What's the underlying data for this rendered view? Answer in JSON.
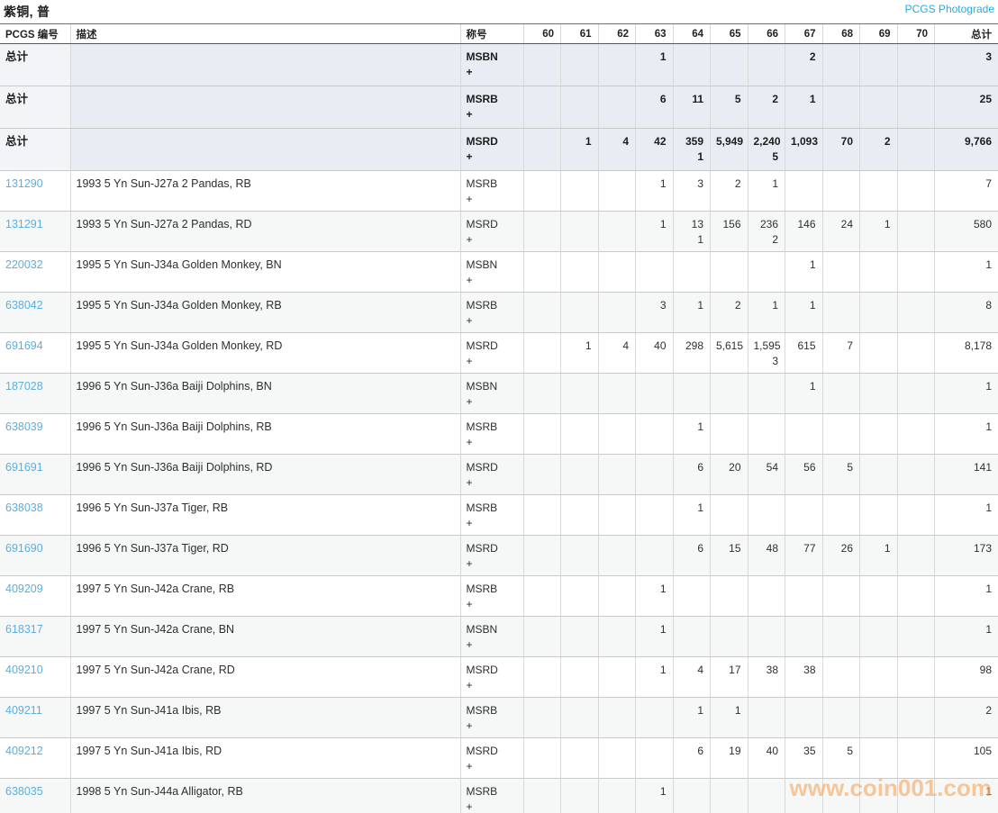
{
  "page": {
    "title": "紫铜, 普",
    "photograde_link": "PCGS Photograde"
  },
  "colors": {
    "link_accent": "#2ba9e2",
    "row_link": "#5eaedd",
    "summary_row_bg": "#e7edf2",
    "stripe_row_bg": "#f6f7f7",
    "watermark_orange": "#f7a75f"
  },
  "table": {
    "headers": {
      "pcgs": "PCGS 编号",
      "desc": "描述",
      "designation": "称号",
      "grades": [
        "60",
        "61",
        "62",
        "63",
        "64",
        "65",
        "66",
        "67",
        "68",
        "69",
        "70"
      ],
      "total": "总计"
    },
    "rows": [
      {
        "pcgs": "总计",
        "desc": "",
        "designation": "MSBN",
        "plus": "+",
        "summary": true,
        "grades": [
          [],
          [],
          [],
          [
            "1"
          ],
          [],
          [],
          [],
          [
            "2"
          ],
          [],
          [],
          []
        ],
        "total": "3"
      },
      {
        "pcgs": "总计",
        "desc": "",
        "designation": "MSRB",
        "plus": "+",
        "summary": true,
        "grades": [
          [],
          [],
          [],
          [
            "6"
          ],
          [
            "11"
          ],
          [
            "5"
          ],
          [
            "2"
          ],
          [
            "1"
          ],
          [],
          [],
          []
        ],
        "total": "25"
      },
      {
        "pcgs": "总计",
        "desc": "",
        "designation": "MSRD",
        "plus": "+",
        "summary": true,
        "grades": [
          [],
          [
            "1"
          ],
          [
            "4"
          ],
          [
            "42"
          ],
          [
            "359",
            "1"
          ],
          [
            "5,949"
          ],
          [
            "2,240",
            "5"
          ],
          [
            "1,093"
          ],
          [
            "70"
          ],
          [
            "2"
          ],
          []
        ],
        "total": "9,766"
      },
      {
        "pcgs": "131290",
        "desc": "1993 5 Yn Sun-J27a 2 Pandas, RB",
        "designation": "MSRB",
        "plus": "+",
        "grades": [
          [],
          [],
          [],
          [
            "1"
          ],
          [
            "3"
          ],
          [
            "2"
          ],
          [
            "1"
          ],
          [],
          [],
          [],
          []
        ],
        "total": "7"
      },
      {
        "pcgs": "131291",
        "desc": "1993 5 Yn Sun-J27a 2 Pandas, RD",
        "designation": "MSRD",
        "plus": "+",
        "grades": [
          [],
          [],
          [],
          [
            "1"
          ],
          [
            "13",
            "1"
          ],
          [
            "156"
          ],
          [
            "236",
            "2"
          ],
          [
            "146"
          ],
          [
            "24"
          ],
          [
            "1"
          ],
          []
        ],
        "total": "580"
      },
      {
        "pcgs": "220032",
        "desc": "1995 5 Yn Sun-J34a Golden Monkey, BN",
        "designation": "MSBN",
        "plus": "+",
        "grades": [
          [],
          [],
          [],
          [],
          [],
          [],
          [],
          [
            "1"
          ],
          [],
          [],
          []
        ],
        "total": "1"
      },
      {
        "pcgs": "638042",
        "desc": "1995 5 Yn Sun-J34a Golden Monkey, RB",
        "designation": "MSRB",
        "plus": "+",
        "grades": [
          [],
          [],
          [],
          [
            "3"
          ],
          [
            "1"
          ],
          [
            "2"
          ],
          [
            "1"
          ],
          [
            "1"
          ],
          [],
          [],
          []
        ],
        "total": "8"
      },
      {
        "pcgs": "691694",
        "desc": "1995 5 Yn Sun-J34a Golden Monkey, RD",
        "designation": "MSRD",
        "plus": "+",
        "grades": [
          [],
          [
            "1"
          ],
          [
            "4"
          ],
          [
            "40"
          ],
          [
            "298"
          ],
          [
            "5,615"
          ],
          [
            "1,595",
            "3"
          ],
          [
            "615"
          ],
          [
            "7"
          ],
          [],
          []
        ],
        "total": "8,178"
      },
      {
        "pcgs": "187028",
        "desc": "1996 5 Yn Sun-J36a Baiji Dolphins, BN",
        "designation": "MSBN",
        "plus": "+",
        "grades": [
          [],
          [],
          [],
          [],
          [],
          [],
          [],
          [
            "1"
          ],
          [],
          [],
          []
        ],
        "total": "1"
      },
      {
        "pcgs": "638039",
        "desc": "1996 5 Yn Sun-J36a Baiji Dolphins, RB",
        "designation": "MSRB",
        "plus": "+",
        "grades": [
          [],
          [],
          [],
          [],
          [
            "1"
          ],
          [],
          [],
          [],
          [],
          [],
          []
        ],
        "total": "1"
      },
      {
        "pcgs": "691691",
        "desc": "1996 5 Yn Sun-J36a Baiji Dolphins, RD",
        "designation": "MSRD",
        "plus": "+",
        "grades": [
          [],
          [],
          [],
          [],
          [
            "6"
          ],
          [
            "20"
          ],
          [
            "54"
          ],
          [
            "56"
          ],
          [
            "5"
          ],
          [],
          []
        ],
        "total": "141"
      },
      {
        "pcgs": "638038",
        "desc": "1996 5 Yn Sun-J37a Tiger, RB",
        "designation": "MSRB",
        "plus": "+",
        "grades": [
          [],
          [],
          [],
          [],
          [
            "1"
          ],
          [],
          [],
          [],
          [],
          [],
          []
        ],
        "total": "1"
      },
      {
        "pcgs": "691690",
        "desc": "1996 5 Yn Sun-J37a Tiger, RD",
        "designation": "MSRD",
        "plus": "+",
        "grades": [
          [],
          [],
          [],
          [],
          [
            "6"
          ],
          [
            "15"
          ],
          [
            "48"
          ],
          [
            "77"
          ],
          [
            "26"
          ],
          [
            "1"
          ],
          []
        ],
        "total": "173"
      },
      {
        "pcgs": "409209",
        "desc": "1997 5 Yn Sun-J42a Crane, RB",
        "designation": "MSRB",
        "plus": "+",
        "grades": [
          [],
          [],
          [],
          [
            "1"
          ],
          [],
          [],
          [],
          [],
          [],
          [],
          []
        ],
        "total": "1"
      },
      {
        "pcgs": "618317",
        "desc": "1997 5 Yn Sun-J42a Crane, BN",
        "designation": "MSBN",
        "plus": "+",
        "grades": [
          [],
          [],
          [],
          [
            "1"
          ],
          [],
          [],
          [],
          [],
          [],
          [],
          []
        ],
        "total": "1"
      },
      {
        "pcgs": "409210",
        "desc": "1997 5 Yn Sun-J42a Crane, RD",
        "designation": "MSRD",
        "plus": "+",
        "grades": [
          [],
          [],
          [],
          [
            "1"
          ],
          [
            "4"
          ],
          [
            "17"
          ],
          [
            "38"
          ],
          [
            "38"
          ],
          [],
          [],
          []
        ],
        "total": "98"
      },
      {
        "pcgs": "409211",
        "desc": "1997 5 Yn Sun-J41a Ibis, RB",
        "designation": "MSRB",
        "plus": "+",
        "grades": [
          [],
          [],
          [],
          [],
          [
            "1"
          ],
          [
            "1"
          ],
          [],
          [],
          [],
          [],
          []
        ],
        "total": "2"
      },
      {
        "pcgs": "409212",
        "desc": "1997 5 Yn Sun-J41a Ibis, RD",
        "designation": "MSRD",
        "plus": "+",
        "grades": [
          [],
          [],
          [],
          [],
          [
            "6"
          ],
          [
            "19"
          ],
          [
            "40"
          ],
          [
            "35"
          ],
          [
            "5"
          ],
          [],
          []
        ],
        "total": "105"
      },
      {
        "pcgs": "638035",
        "desc": "1998 5 Yn Sun-J44a Alligator, RB",
        "designation": "MSRB",
        "plus": "+",
        "grades": [
          [],
          [],
          [],
          [
            "1"
          ],
          [],
          [],
          [],
          [],
          [],
          [],
          []
        ],
        "total": "1"
      }
    ]
  },
  "watermark": "www.coin001.com"
}
